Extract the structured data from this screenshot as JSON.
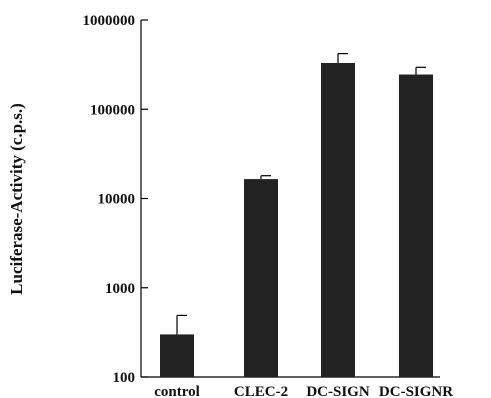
{
  "chart_data": {
    "type": "bar",
    "title": "",
    "xlabel": "",
    "ylabel": "Luciferase-Activity (c.p.s.)",
    "yscale": "log",
    "ylim": [
      100,
      1000000
    ],
    "yticks": [
      100,
      1000,
      10000,
      100000,
      1000000
    ],
    "ytick_labels": [
      "100",
      "1000",
      "10000",
      "100000",
      "1000000"
    ],
    "grid": false,
    "categories": [
      "control",
      "CLEC-2",
      "DC-SIGN",
      "DC-SIGNR"
    ],
    "values": [
      300,
      16500,
      330000,
      245000
    ],
    "error_upper": [
      490,
      18000,
      420000,
      295000
    ],
    "colors": {
      "bar": "#222222",
      "axis": "#000000"
    }
  }
}
